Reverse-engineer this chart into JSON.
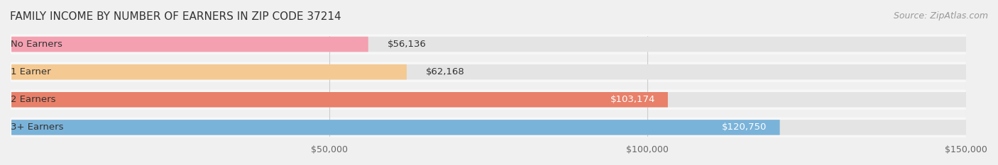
{
  "title": "FAMILY INCOME BY NUMBER OF EARNERS IN ZIP CODE 37214",
  "source": "Source: ZipAtlas.com",
  "categories": [
    "No Earners",
    "1 Earner",
    "2 Earners",
    "3+ Earners"
  ],
  "values": [
    56136,
    62168,
    103174,
    120750
  ],
  "bar_colors": [
    "#f4a0b0",
    "#f5c992",
    "#e8806a",
    "#7ab3d9"
  ],
  "label_colors": [
    "#333333",
    "#333333",
    "#333333",
    "#ffffff"
  ],
  "value_labels": [
    "$56,136",
    "$62,168",
    "$103,174",
    "$120,750"
  ],
  "xmin": 0,
  "xmax": 150000,
  "xticks": [
    50000,
    100000,
    150000
  ],
  "xtick_labels": [
    "$50,000",
    "$100,000",
    "$150,000"
  ],
  "background_color": "#f0f0f0",
  "bar_bg_color": "#e8e8e8",
  "title_fontsize": 11,
  "source_fontsize": 9,
  "label_fontsize": 9.5,
  "value_fontsize": 9.5,
  "tick_fontsize": 9
}
